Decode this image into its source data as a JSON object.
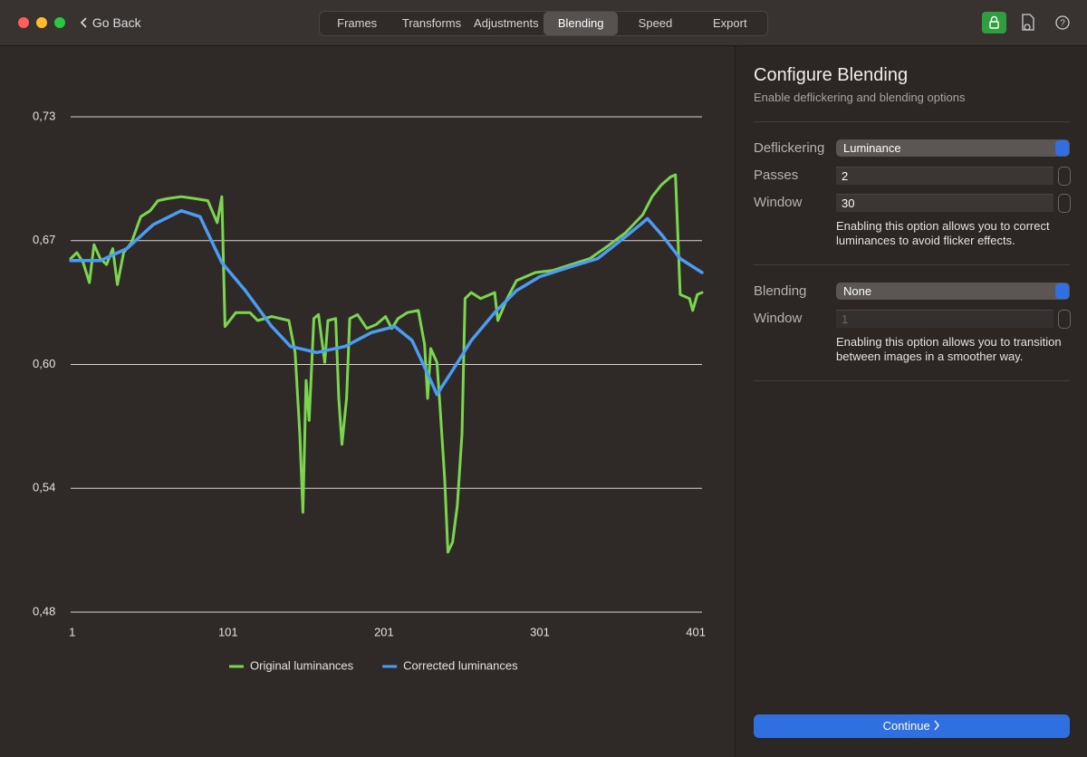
{
  "window": {
    "back": "Go Back",
    "tabs": [
      "Frames",
      "Transforms",
      "Adjustments",
      "Blending",
      "Speed",
      "Export"
    ],
    "selected_tab": 3
  },
  "sidebar": {
    "title": "Configure Blending",
    "subtitle": "Enable deflickering and blending options",
    "deflickering": {
      "fields": [
        {
          "label": "Deflickering",
          "value": "Luminance"
        },
        {
          "label": "Passes",
          "value": "2"
        },
        {
          "label": "Window",
          "value": "30"
        }
      ],
      "help": "Enabling this option allows you to correct luminances to avoid flicker effects."
    },
    "blending": {
      "fields": [
        {
          "label": "Blending",
          "value": "None"
        },
        {
          "label": "Window",
          "value": "1"
        }
      ],
      "help": "Enabling this option allows you to transition between images in a smoother way."
    },
    "continue": "Continue"
  },
  "chart_data": {
    "type": "line",
    "xlim": [
      0,
      405
    ],
    "xticks": [
      1,
      101,
      201,
      301,
      401
    ],
    "ylim": [
      0.48,
      0.728
    ],
    "yticks": [
      {
        "value": 0.48,
        "label": "0,48"
      },
      {
        "value": 0.542,
        "label": "0,54"
      },
      {
        "value": 0.604,
        "label": "0,60"
      },
      {
        "value": 0.666,
        "label": "0,67"
      },
      {
        "value": 0.728,
        "label": "0,73"
      }
    ],
    "grid": true,
    "legend": "bottom",
    "series": [
      {
        "name": "Original luminances",
        "color": "#7bd64f",
        "x": [
          0,
          4,
          8,
          12,
          15,
          19,
          23,
          27,
          30,
          34,
          39,
          45,
          51,
          56,
          62,
          71,
          80,
          88,
          94,
          97,
          99,
          106,
          115,
          120,
          129,
          140,
          144,
          147,
          149,
          151,
          153,
          156,
          159,
          163,
          165,
          170,
          172,
          174,
          177,
          179,
          184,
          190,
          196,
          202,
          206,
          210,
          216,
          223,
          227,
          229,
          231,
          235,
          237,
          240,
          242,
          245,
          248,
          251,
          253,
          257,
          263,
          272,
          274,
          280,
          286,
          298,
          309,
          321,
          333,
          344,
          356,
          367,
          373,
          379,
          385,
          388,
          391,
          397,
          399,
          402,
          405
        ],
        "values": [
          0.657,
          0.66,
          0.655,
          0.645,
          0.664,
          0.657,
          0.654,
          0.662,
          0.644,
          0.66,
          0.665,
          0.678,
          0.681,
          0.686,
          0.687,
          0.688,
          0.687,
          0.686,
          0.675,
          0.688,
          0.623,
          0.63,
          0.63,
          0.626,
          0.628,
          0.626,
          0.61,
          0.569,
          0.53,
          0.596,
          0.576,
          0.627,
          0.629,
          0.605,
          0.626,
          0.627,
          0.587,
          0.564,
          0.587,
          0.627,
          0.629,
          0.622,
          0.624,
          0.628,
          0.622,
          0.627,
          0.63,
          0.631,
          0.614,
          0.587,
          0.612,
          0.605,
          0.582,
          0.546,
          0.51,
          0.515,
          0.533,
          0.569,
          0.637,
          0.64,
          0.637,
          0.64,
          0.626,
          0.637,
          0.646,
          0.65,
          0.651,
          0.654,
          0.657,
          0.663,
          0.67,
          0.679,
          0.688,
          0.694,
          0.698,
          0.699,
          0.639,
          0.637,
          0.631,
          0.639,
          0.64
        ]
      },
      {
        "name": "Corrected luminances",
        "color": "#4b9cf2",
        "x": [
          0,
          19,
          36,
          53,
          71,
          83,
          97,
          112,
          129,
          141,
          158,
          176,
          193,
          208,
          219,
          228,
          235,
          245,
          257,
          272,
          286,
          301,
          321,
          338,
          356,
          370,
          379,
          391,
          405
        ],
        "values": [
          0.656,
          0.656,
          0.662,
          0.674,
          0.681,
          0.678,
          0.655,
          0.641,
          0.623,
          0.613,
          0.61,
          0.613,
          0.62,
          0.623,
          0.616,
          0.601,
          0.589,
          0.601,
          0.616,
          0.63,
          0.641,
          0.648,
          0.653,
          0.657,
          0.668,
          0.677,
          0.669,
          0.657,
          0.65
        ]
      }
    ]
  }
}
